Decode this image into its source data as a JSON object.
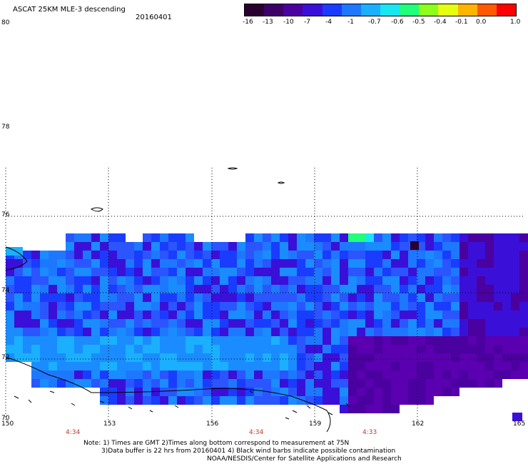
{
  "header": {
    "title": "ASCAT 25KM MLE-3 descending",
    "date": "20160401"
  },
  "colorbar": {
    "labels": [
      "-16",
      "-13",
      "-10",
      "-7",
      "-4",
      "-1",
      "-0.7",
      "-0.6",
      "-0.5",
      "-0.4",
      "-0.1",
      "0.0",
      "1.0"
    ],
    "colors": [
      "#2a0030",
      "#3d0066",
      "#4b00a0",
      "#3a10d8",
      "#1a3cff",
      "#1e78ff",
      "#1ab0ff",
      "#18e6f0",
      "#22ff7a",
      "#8cff1a",
      "#e6ff10",
      "#ffb400",
      "#ff5a00",
      "#ff0000"
    ]
  },
  "axes": {
    "lat_labels": [
      "80",
      "78",
      "76",
      "74",
      "72",
      "70"
    ],
    "lon_labels": [
      "150",
      "153",
      "156",
      "159",
      "162",
      "165"
    ],
    "time_labels": [
      "4:34",
      "4:34",
      "4:33"
    ]
  },
  "notes": {
    "line1": "Note: 1) Times are GMT 2)Times along bottom correspond to measurement at 75N",
    "line2": "3)Data buffer is 22 hrs from 20160401 4) Black wind barbs indicate possible contamination",
    "line3": "NOAA/NESDIS/Center for Satellite Applications and Research"
  }
}
